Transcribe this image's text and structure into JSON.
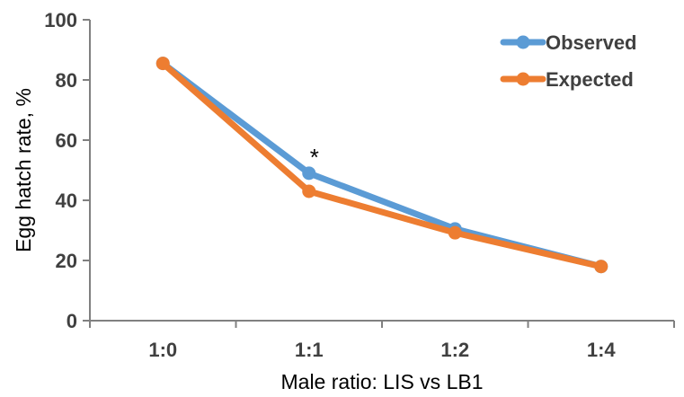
{
  "chart_data": {
    "type": "line",
    "title": "",
    "xlabel": "Male ratio: LIS vs LB1",
    "ylabel": "Egg hatch rate, %",
    "categories": [
      "1:0",
      "1:1",
      "1:2",
      "1:4"
    ],
    "ylim": [
      0,
      100
    ],
    "yticks": [
      0,
      20,
      40,
      60,
      80,
      100
    ],
    "grid": false,
    "legend": "top-right",
    "series": [
      {
        "name": "Observed",
        "color": "#5B9BD5",
        "values": [
          85.5,
          49,
          30.5,
          18
        ]
      },
      {
        "name": "Expected",
        "color": "#ED7D31",
        "values": [
          85.5,
          43,
          29.2,
          18
        ]
      }
    ],
    "annotations": [
      {
        "text": "*",
        "category": "1:1",
        "y": 55
      }
    ]
  }
}
